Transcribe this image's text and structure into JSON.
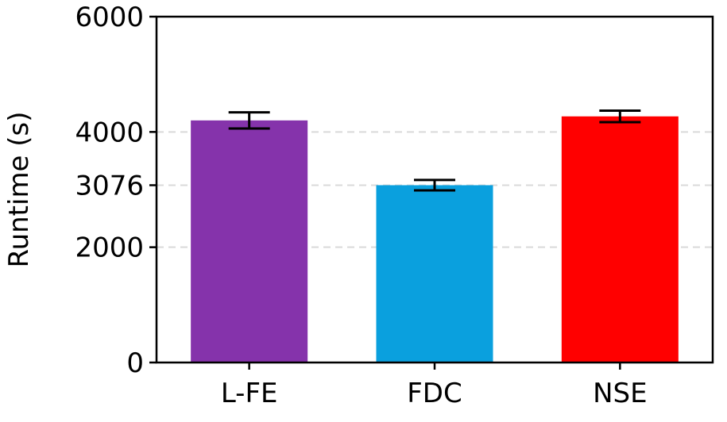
{
  "chart_data": {
    "type": "bar",
    "categories": [
      "L-FE",
      "FDC",
      "NSE"
    ],
    "values": [
      4200,
      3076,
      4270
    ],
    "errors": [
      140,
      90,
      100
    ],
    "colors": [
      "#8533ab",
      "#0aa0de",
      "#ff0000"
    ],
    "title": "",
    "xlabel": "",
    "ylabel": "Runtime (s)",
    "ylim": [
      0,
      6000
    ],
    "yticks": [
      0,
      2000,
      3076,
      4000,
      6000
    ],
    "yticks_labels": [
      "0",
      "2000",
      "3076",
      "4000",
      "6000"
    ],
    "gridlines": [
      2000,
      3076,
      4000
    ],
    "grid": "dashed horizontal at selected ticks",
    "legend": "none"
  }
}
